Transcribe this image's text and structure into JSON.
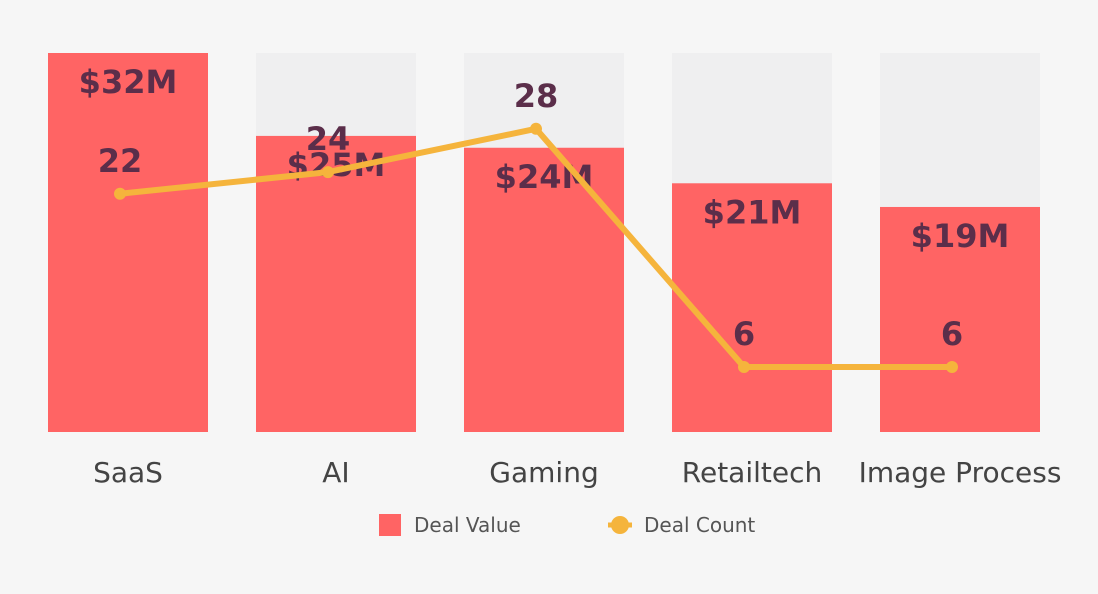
{
  "chart_data": {
    "type": "bar",
    "categories": [
      "SaaS",
      "AI",
      "Gaming",
      "Retailtech",
      "Image Process"
    ],
    "series": [
      {
        "name": "Deal Value",
        "type": "bar",
        "values": [
          32,
          25,
          24,
          21,
          19
        ],
        "labels": [
          "$32M",
          "$25M",
          "$24M",
          "$21M",
          "$19M"
        ],
        "color": "#ff6464"
      },
      {
        "name": "Deal Count",
        "type": "line",
        "values": [
          22,
          24,
          28,
          6,
          6
        ],
        "labels": [
          "22",
          "24",
          "28",
          "6",
          "6"
        ],
        "color": "#f5b43c"
      }
    ],
    "value_axis_max": 32,
    "count_axis_max": 35,
    "legend_position": "bottom",
    "grid": false,
    "colors": {
      "background": "#f6f6f6",
      "bar_track": "#efeff0",
      "label_text": "#5b2e4a",
      "category_text": "#444444",
      "legend_text": "#555555"
    }
  }
}
